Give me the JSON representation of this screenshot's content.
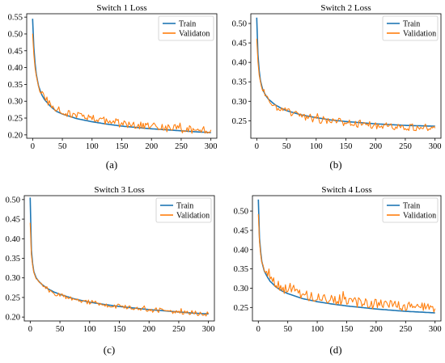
{
  "figure": {
    "captions": [
      "(a)",
      "(b)",
      "(c)",
      "(d)"
    ]
  },
  "chart_data": [
    {
      "type": "line",
      "title": "Switch 1 Loss",
      "xlabel": "",
      "ylabel": "",
      "xlim": [
        -10,
        310
      ],
      "ylim": [
        0.19,
        0.56
      ],
      "xticks": [
        0,
        50,
        100,
        150,
        200,
        250,
        300
      ],
      "yticks": [
        0.2,
        0.25,
        0.3,
        0.35,
        0.4,
        0.45,
        0.5,
        0.55
      ],
      "legend": "top-right",
      "grid": false,
      "series": [
        {
          "name": "Train",
          "color": "#1f77b4",
          "x": [
            0,
            2,
            5,
            10,
            15,
            20,
            30,
            40,
            50,
            75,
            100,
            125,
            150,
            175,
            200,
            225,
            250,
            275,
            300
          ],
          "values": [
            0.545,
            0.46,
            0.39,
            0.345,
            0.32,
            0.305,
            0.285,
            0.27,
            0.262,
            0.248,
            0.239,
            0.232,
            0.226,
            0.222,
            0.218,
            0.215,
            0.212,
            0.209,
            0.207
          ]
        },
        {
          "name": "Validaton",
          "color": "#ff7f0e",
          "x": [
            0,
            2,
            5,
            10,
            15,
            20,
            30,
            40,
            50,
            75,
            100,
            125,
            150,
            175,
            200,
            225,
            250,
            275,
            300
          ],
          "values": [
            0.5,
            0.44,
            0.38,
            0.345,
            0.323,
            0.31,
            0.29,
            0.278,
            0.27,
            0.257,
            0.248,
            0.24,
            0.234,
            0.229,
            0.225,
            0.221,
            0.218,
            0.215,
            0.213
          ],
          "noise": 0.012
        }
      ]
    },
    {
      "type": "line",
      "title": "Switch 2 Loss",
      "xlabel": "",
      "ylabel": "",
      "xlim": [
        -10,
        310
      ],
      "ylim": [
        0.205,
        0.525
      ],
      "xticks": [
        0,
        50,
        100,
        150,
        200,
        250,
        300
      ],
      "yticks": [
        0.25,
        0.3,
        0.35,
        0.4,
        0.45,
        0.5
      ],
      "legend": "top-right",
      "grid": false,
      "series": [
        {
          "name": "Train",
          "color": "#1f77b4",
          "x": [
            0,
            2,
            5,
            10,
            15,
            20,
            30,
            40,
            50,
            75,
            100,
            125,
            150,
            175,
            200,
            225,
            250,
            275,
            300
          ],
          "values": [
            0.515,
            0.42,
            0.36,
            0.33,
            0.315,
            0.305,
            0.292,
            0.283,
            0.276,
            0.265,
            0.258,
            0.252,
            0.248,
            0.245,
            0.242,
            0.24,
            0.238,
            0.237,
            0.236
          ]
        },
        {
          "name": "Validation",
          "color": "#ff7f0e",
          "x": [
            0,
            2,
            5,
            10,
            15,
            20,
            30,
            40,
            50,
            75,
            100,
            125,
            150,
            175,
            200,
            225,
            250,
            275,
            300
          ],
          "values": [
            0.46,
            0.4,
            0.355,
            0.328,
            0.312,
            0.302,
            0.289,
            0.28,
            0.273,
            0.262,
            0.255,
            0.249,
            0.245,
            0.242,
            0.239,
            0.237,
            0.235,
            0.234,
            0.233
          ],
          "noise": 0.01
        }
      ]
    },
    {
      "type": "line",
      "title": "Switch 3 Loss",
      "xlabel": "",
      "ylabel": "",
      "xlim": [
        -10,
        310
      ],
      "ylim": [
        0.19,
        0.51
      ],
      "xticks": [
        0,
        50,
        100,
        150,
        200,
        250,
        300
      ],
      "yticks": [
        0.2,
        0.25,
        0.3,
        0.35,
        0.4,
        0.45,
        0.5
      ],
      "legend": "top-right",
      "grid": false,
      "series": [
        {
          "name": "Train",
          "color": "#1f77b4",
          "x": [
            0,
            2,
            5,
            10,
            15,
            20,
            30,
            40,
            50,
            75,
            100,
            125,
            150,
            175,
            200,
            225,
            250,
            275,
            300
          ],
          "values": [
            0.505,
            0.37,
            0.32,
            0.3,
            0.29,
            0.283,
            0.272,
            0.264,
            0.258,
            0.246,
            0.238,
            0.232,
            0.227,
            0.223,
            0.219,
            0.216,
            0.213,
            0.21,
            0.208
          ]
        },
        {
          "name": "Validation",
          "color": "#ff7f0e",
          "x": [
            0,
            2,
            5,
            10,
            15,
            20,
            30,
            40,
            50,
            75,
            100,
            125,
            150,
            175,
            200,
            225,
            250,
            275,
            300
          ],
          "values": [
            0.44,
            0.36,
            0.318,
            0.298,
            0.288,
            0.281,
            0.27,
            0.262,
            0.256,
            0.245,
            0.238,
            0.232,
            0.227,
            0.223,
            0.219,
            0.216,
            0.213,
            0.21,
            0.208
          ],
          "noise": 0.006
        }
      ]
    },
    {
      "type": "line",
      "title": "Switch 4 Loss",
      "xlabel": "",
      "ylabel": "",
      "xlim": [
        -10,
        310
      ],
      "ylim": [
        0.215,
        0.54
      ],
      "xticks": [
        0,
        50,
        100,
        150,
        200,
        250,
        300
      ],
      "yticks": [
        0.25,
        0.3,
        0.35,
        0.4,
        0.45,
        0.5
      ],
      "legend": "top-right",
      "grid": false,
      "series": [
        {
          "name": "Train",
          "color": "#1f77b4",
          "x": [
            0,
            2,
            5,
            10,
            15,
            20,
            30,
            40,
            50,
            75,
            100,
            125,
            150,
            175,
            200,
            225,
            250,
            275,
            300
          ],
          "values": [
            0.53,
            0.43,
            0.375,
            0.345,
            0.33,
            0.318,
            0.303,
            0.293,
            0.286,
            0.273,
            0.265,
            0.259,
            0.254,
            0.25,
            0.246,
            0.243,
            0.24,
            0.238,
            0.236
          ]
        },
        {
          "name": "Validation",
          "color": "#ff7f0e",
          "x": [
            0,
            2,
            5,
            10,
            15,
            20,
            30,
            40,
            50,
            75,
            100,
            125,
            150,
            175,
            200,
            225,
            250,
            275,
            300
          ],
          "values": [
            0.49,
            0.42,
            0.372,
            0.347,
            0.335,
            0.325,
            0.312,
            0.302,
            0.295,
            0.283,
            0.275,
            0.27,
            0.265,
            0.262,
            0.258,
            0.256,
            0.253,
            0.251,
            0.25
          ],
          "noise": 0.013
        }
      ]
    }
  ]
}
